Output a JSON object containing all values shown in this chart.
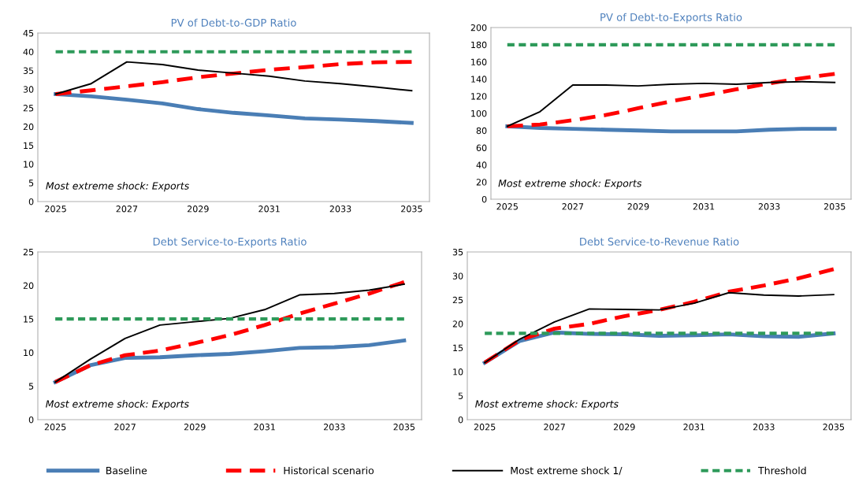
{
  "chart_data": [
    {
      "type": "line",
      "title": "PV of Debt-to-GDP Ratio",
      "categories": [
        "2025",
        null,
        "2027",
        null,
        "2029",
        null,
        "2031",
        null,
        "2033",
        null,
        "2035"
      ],
      "ylim": [
        0,
        45
      ],
      "yticks": [
        0,
        5,
        10,
        15,
        20,
        25,
        30,
        35,
        40,
        45
      ],
      "grid": false,
      "legend": "bottom",
      "annotations": [
        "Most extreme shock: Exports"
      ],
      "series": [
        {
          "name": "Baseline",
          "color": "#4a7eb5",
          "line_style": "solid",
          "values": [
            28.7,
            28.1,
            27.2,
            26.2,
            24.7,
            23.7,
            23.0,
            22.2,
            21.9,
            21.5,
            21.0
          ]
        },
        {
          "name": "Historical scenario",
          "color": "#ff0000",
          "line_style": "dashed",
          "values": [
            28.7,
            29.7,
            30.8,
            31.9,
            33.2,
            34.2,
            35.2,
            35.9,
            36.7,
            37.2,
            37.3
          ]
        },
        {
          "name": "Most extreme shock 1/",
          "color": "#000000",
          "line_style": "solid",
          "values": [
            28.7,
            31.5,
            37.3,
            36.6,
            35.1,
            34.3,
            33.5,
            32.2,
            31.5,
            30.6,
            29.6
          ]
        },
        {
          "name": "Threshold",
          "color": "#2e9a5a",
          "line_style": "dashed",
          "values": [
            40,
            40,
            40,
            40,
            40,
            40,
            40,
            40,
            40,
            40,
            40
          ]
        }
      ]
    },
    {
      "type": "line",
      "title": "PV of Debt-to-Exports Ratio",
      "categories": [
        "2025",
        null,
        "2027",
        null,
        "2029",
        null,
        "2031",
        null,
        "2033",
        null,
        "2035"
      ],
      "ylim": [
        0,
        200
      ],
      "yticks": [
        0,
        20,
        40,
        60,
        80,
        100,
        120,
        140,
        160,
        180,
        200
      ],
      "grid": false,
      "annotations": [
        "Most extreme shock: Exports"
      ],
      "series": [
        {
          "color": "#4a7eb5",
          "line_style": "solid",
          "values": [
            85,
            83,
            82,
            81,
            80,
            79,
            79,
            79,
            81,
            82,
            82
          ]
        },
        {
          "color": "#ff0000",
          "line_style": "dashed",
          "values": [
            85,
            87,
            92,
            98,
            106,
            114,
            121,
            128,
            135,
            141,
            146
          ]
        },
        {
          "color": "#000000",
          "line_style": "solid",
          "values": [
            85,
            102,
            133,
            133,
            132,
            134,
            135,
            134,
            136,
            137,
            136
          ]
        },
        {
          "color": "#2e9a5a",
          "line_style": "dashed",
          "values": [
            180,
            180,
            180,
            180,
            180,
            180,
            180,
            180,
            180,
            180,
            180
          ]
        }
      ]
    },
    {
      "type": "line",
      "title": "Debt Service-to-Exports Ratio",
      "categories": [
        "2025",
        null,
        "2027",
        null,
        "2029",
        null,
        "2031",
        null,
        "2033",
        null,
        "2035"
      ],
      "ylim": [
        0,
        25
      ],
      "yticks": [
        0,
        5,
        10,
        15,
        20,
        25
      ],
      "grid": false,
      "annotations": [
        "Most extreme shock: Exports"
      ],
      "series": [
        {
          "color": "#4a7eb5",
          "line_style": "solid",
          "values": [
            5.6,
            8.1,
            9.2,
            9.3,
            9.6,
            9.8,
            10.2,
            10.7,
            10.8,
            11.1,
            11.8
          ]
        },
        {
          "color": "#ff0000",
          "line_style": "dashed",
          "values": [
            5.6,
            8.1,
            9.6,
            10.3,
            11.4,
            12.6,
            14.1,
            15.8,
            17.3,
            18.8,
            20.5
          ]
        },
        {
          "color": "#000000",
          "line_style": "solid",
          "values": [
            5.6,
            9.0,
            12.1,
            14.1,
            14.6,
            15.1,
            16.4,
            18.6,
            18.8,
            19.3,
            20.2
          ]
        },
        {
          "color": "#2e9a5a",
          "line_style": "dashed",
          "values": [
            15,
            15,
            15,
            15,
            15,
            15,
            15,
            15,
            15,
            15,
            15
          ]
        }
      ]
    },
    {
      "type": "line",
      "title": "Debt Service-to-Revenue Ratio",
      "categories": [
        "2025",
        null,
        "2027",
        null,
        "2029",
        null,
        "2031",
        null,
        "2033",
        null,
        "2035"
      ],
      "ylim": [
        0,
        35
      ],
      "yticks": [
        0,
        5,
        10,
        15,
        20,
        25,
        30,
        35
      ],
      "grid": false,
      "annotations": [
        "Most extreme shock: Exports"
      ],
      "series": [
        {
          "color": "#4a7eb5",
          "line_style": "solid",
          "values": [
            11.9,
            16.4,
            18.2,
            17.9,
            17.8,
            17.5,
            17.6,
            17.8,
            17.4,
            17.3,
            18.0
          ]
        },
        {
          "color": "#ff0000",
          "line_style": "dashed",
          "values": [
            11.9,
            16.6,
            19.0,
            20.0,
            21.6,
            22.9,
            24.6,
            26.7,
            28.0,
            29.5,
            31.4
          ]
        },
        {
          "color": "#000000",
          "line_style": "solid",
          "values": [
            11.9,
            16.8,
            20.4,
            23.1,
            23.0,
            22.9,
            24.3,
            26.5,
            26.0,
            25.8,
            26.1
          ]
        },
        {
          "color": "#2e9a5a",
          "line_style": "dashed",
          "values": [
            18,
            18,
            18,
            18,
            18,
            18,
            18,
            18,
            18,
            18,
            18
          ]
        }
      ]
    }
  ]
}
